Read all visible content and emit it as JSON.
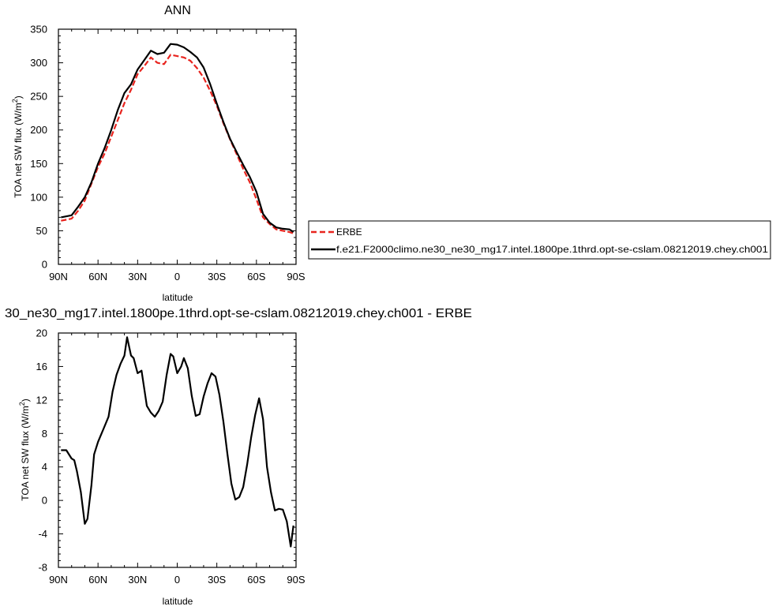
{
  "chart_data": [
    {
      "type": "line",
      "title": "ANN",
      "xlabel": "latitude",
      "ylabel": "TOA net SW flux (W/m",
      "ylabel_sup": "2",
      "ylabel_close": ")",
      "x_ticks": [
        "90N",
        "60N",
        "30N",
        "0",
        "30S",
        "60S",
        "90S"
      ],
      "y_ticks": [
        "0",
        "50",
        "100",
        "150",
        "200",
        "250",
        "300",
        "350"
      ],
      "xlim": [
        90,
        -90
      ],
      "ylim": [
        0,
        350
      ],
      "legend_position": "right",
      "series": [
        {
          "name": "ERBE",
          "color": "#e8241e",
          "dash": "dashed",
          "x": [
            88,
            80,
            75,
            70,
            65,
            60,
            55,
            50,
            45,
            40,
            35,
            30,
            25,
            20,
            15,
            10,
            5,
            0,
            -5,
            -10,
            -15,
            -20,
            -25,
            -30,
            -35,
            -40,
            -45,
            -50,
            -55,
            -60,
            -65,
            -70,
            -75,
            -80,
            -85,
            -88
          ],
          "y": [
            65,
            68,
            80,
            95,
            120,
            145,
            165,
            190,
            215,
            240,
            260,
            283,
            295,
            308,
            300,
            298,
            312,
            310,
            308,
            303,
            292,
            278,
            258,
            236,
            210,
            186,
            164,
            142,
            122,
            97,
            70,
            60,
            52,
            50,
            48,
            46
          ]
        },
        {
          "name": "f.e21.F2000climo.ne30_ne30_mg17.intel.1800pe.1thrd.opt-se-cslam.08212019.chey.ch001",
          "color": "#000000",
          "dash": "solid",
          "x": [
            88,
            80,
            75,
            70,
            65,
            60,
            55,
            50,
            45,
            40,
            35,
            30,
            25,
            20,
            15,
            10,
            5,
            0,
            -5,
            -10,
            -15,
            -20,
            -25,
            -30,
            -35,
            -40,
            -45,
            -50,
            -55,
            -60,
            -65,
            -70,
            -75,
            -80,
            -85,
            -88
          ],
          "y": [
            70,
            73,
            86,
            100,
            122,
            150,
            173,
            200,
            230,
            255,
            268,
            290,
            304,
            318,
            313,
            315,
            328,
            327,
            323,
            316,
            308,
            293,
            268,
            239,
            212,
            187,
            167,
            148,
            130,
            108,
            75,
            62,
            55,
            53,
            52,
            48
          ]
        }
      ]
    },
    {
      "type": "line",
      "title": "30_ne30_mg17.intel.1800pe.1thrd.opt-se-cslam.08212019.chey.ch001 - ERBE",
      "xlabel": "latitude",
      "ylabel": "TOA net SW flux (W/m",
      "ylabel_sup": "2",
      "ylabel_close": ")",
      "x_ticks": [
        "90N",
        "60N",
        "30N",
        "0",
        "30S",
        "60S",
        "90S"
      ],
      "y_ticks": [
        "-8",
        "-4",
        "0",
        "4",
        "8",
        "12",
        "16",
        "20"
      ],
      "xlim": [
        90,
        -90
      ],
      "ylim": [
        -8,
        20
      ],
      "series": [
        {
          "color": "#000000",
          "dash": "solid",
          "x": [
            88,
            84,
            80,
            78,
            76,
            73,
            70,
            68,
            65,
            63,
            60,
            56,
            52,
            49,
            46,
            43,
            40,
            38,
            35,
            33,
            30,
            27,
            23,
            20,
            17,
            14,
            11,
            8,
            5,
            3,
            0,
            -3,
            -5,
            -8,
            -11,
            -14,
            -17,
            -20,
            -23,
            -26,
            -29,
            -32,
            -35,
            -38,
            -41,
            -44,
            -47,
            -50,
            -53,
            -56,
            -59,
            -62,
            -65,
            -68,
            -71,
            -74,
            -77,
            -80,
            -83,
            -86,
            -88
          ],
          "y": [
            6,
            6,
            5,
            4.8,
            3.5,
            1,
            -2.8,
            -2.2,
            1.8,
            5.5,
            7,
            8.5,
            10,
            13,
            15,
            16.3,
            17.3,
            19.5,
            17.3,
            17,
            15.2,
            15.5,
            11.3,
            10.5,
            10,
            10.7,
            11.8,
            15,
            17.5,
            17.2,
            15.2,
            16,
            17,
            15.8,
            12.5,
            10.1,
            10.3,
            12.4,
            14,
            15.2,
            14.8,
            12.6,
            9.4,
            5.6,
            2,
            0.1,
            0.4,
            1.6,
            4.3,
            7.5,
            10.2,
            12.2,
            9.7,
            4,
            1,
            -1.2,
            -1,
            -1.1,
            -2.5,
            -5.5,
            -3
          ]
        }
      ]
    }
  ]
}
